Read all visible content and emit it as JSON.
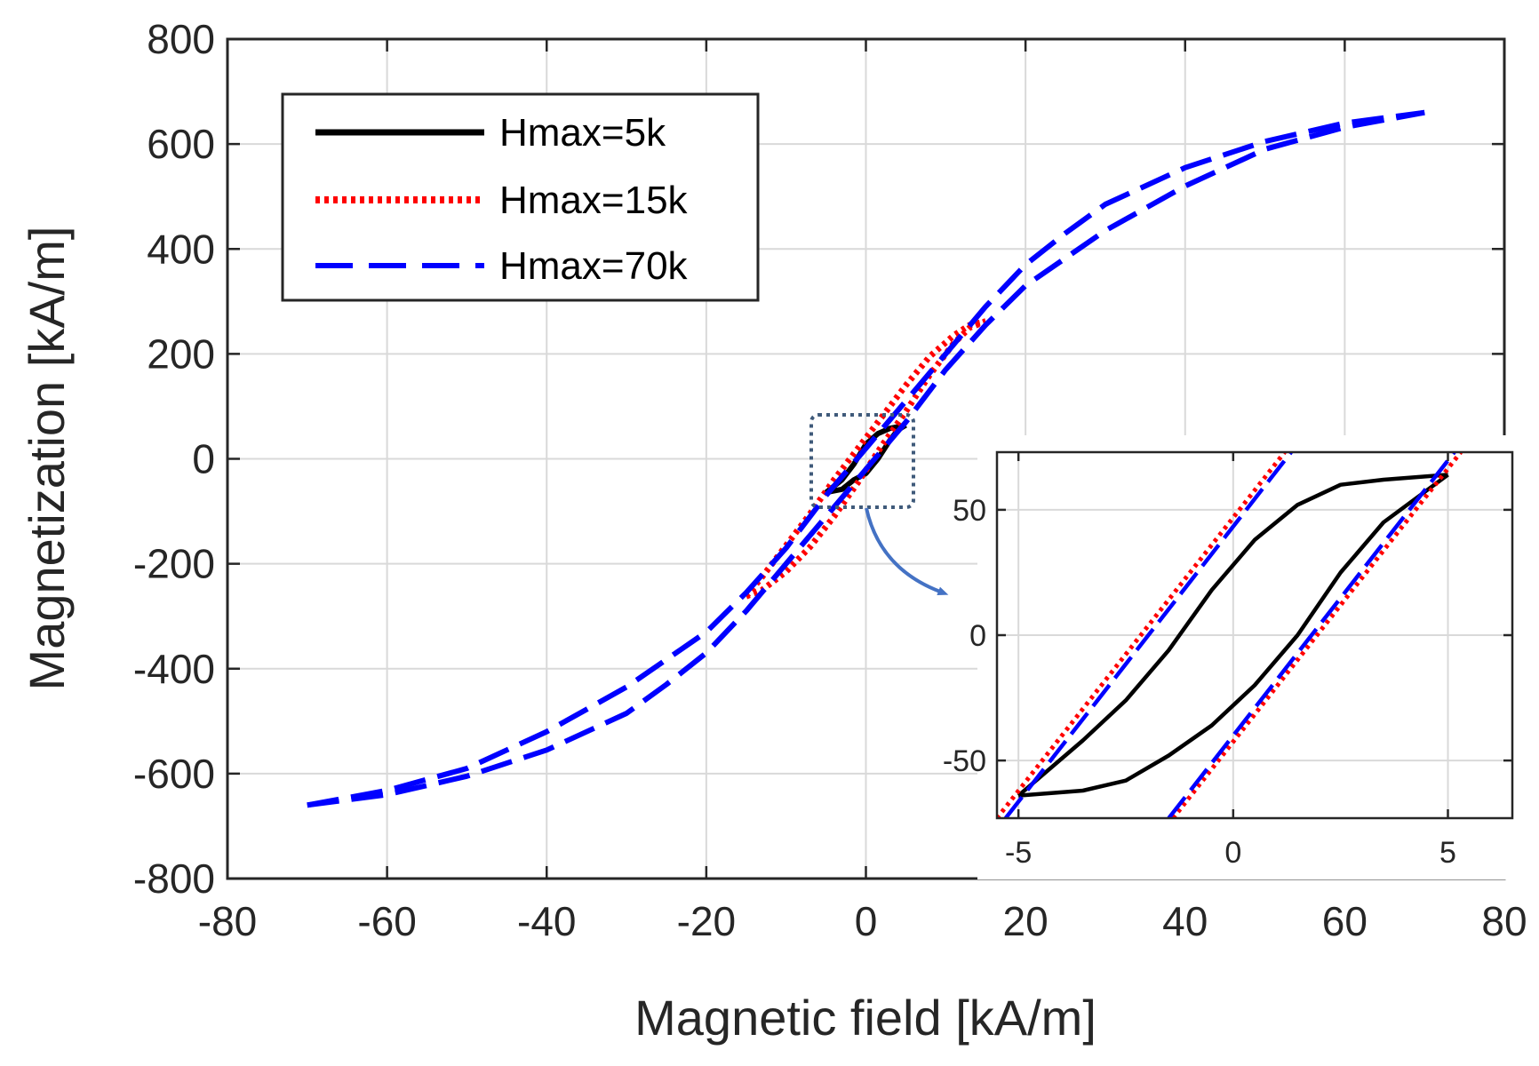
{
  "chart_data": [
    {
      "type": "line",
      "role": "main",
      "title": "",
      "xlabel": "Magnetic field [kA/m]",
      "ylabel": "Magnetization [kA/m]",
      "xlim": [
        -80,
        80
      ],
      "ylim": [
        -800,
        800
      ],
      "xticks": [
        -80,
        -60,
        -40,
        -20,
        0,
        20,
        40,
        60,
        80
      ],
      "yticks": [
        -800,
        -600,
        -400,
        -200,
        0,
        200,
        400,
        600,
        800
      ],
      "grid": true,
      "legend_position": "top-left",
      "series": [
        {
          "name": "Hmax=5k",
          "color": "#000000",
          "style": "solid",
          "upper": [
            [
              -5,
              -64
            ],
            [
              -3,
              -58
            ],
            [
              -1.5,
              -40
            ],
            [
              0,
              -28
            ],
            [
              1.5,
              0
            ],
            [
              3,
              35
            ],
            [
              4,
              55
            ],
            [
              5,
              64
            ]
          ],
          "lower": [
            [
              -5,
              -64
            ],
            [
              -3,
              -40
            ],
            [
              -1.5,
              -10
            ],
            [
              0,
              28
            ],
            [
              1.5,
              48
            ],
            [
              3,
              58
            ],
            [
              5,
              64
            ]
          ]
        },
        {
          "name": "Hmax=15k",
          "color": "#ff0000",
          "style": "dotted",
          "upper": [
            [
              -15,
              -262
            ],
            [
              -13,
              -250
            ],
            [
              -10,
              -215
            ],
            [
              -7,
              -168
            ],
            [
              -4,
              -110
            ],
            [
              -1,
              -45
            ],
            [
              2,
              25
            ],
            [
              5,
              90
            ],
            [
              8,
              160
            ],
            [
              11,
              220
            ],
            [
              13,
              250
            ],
            [
              15,
              262
            ]
          ],
          "lower": [
            [
              -15,
              -262
            ],
            [
              -13,
              -225
            ],
            [
              -10,
              -165
            ],
            [
              -7,
              -105
            ],
            [
              -4,
              -40
            ],
            [
              -1,
              20
            ],
            [
              2,
              80
            ],
            [
              5,
              140
            ],
            [
              8,
              195
            ],
            [
              11,
              235
            ],
            [
              13,
              255
            ],
            [
              15,
              262
            ]
          ]
        },
        {
          "name": "Hmax=70k",
          "color": "#0000ff",
          "style": "dashed",
          "upper": [
            [
              -70,
              -660
            ],
            [
              -60,
              -632
            ],
            [
              -50,
              -590
            ],
            [
              -40,
              -520
            ],
            [
              -30,
              -435
            ],
            [
              -20,
              -330
            ],
            [
              -15,
              -255
            ],
            [
              -10,
              -170
            ],
            [
              -5,
              -70
            ],
            [
              0,
              20
            ],
            [
              5,
              110
            ],
            [
              10,
              200
            ],
            [
              15,
              290
            ],
            [
              20,
              370
            ],
            [
              25,
              430
            ],
            [
              30,
              485
            ],
            [
              40,
              555
            ],
            [
              50,
              605
            ],
            [
              60,
              640
            ],
            [
              70,
              660
            ]
          ],
          "lower": [
            [
              -70,
              -660
            ],
            [
              -60,
              -640
            ],
            [
              -50,
              -605
            ],
            [
              -40,
              -555
            ],
            [
              -30,
              -485
            ],
            [
              -25,
              -430
            ],
            [
              -20,
              -370
            ],
            [
              -15,
              -290
            ],
            [
              -10,
              -200
            ],
            [
              -5,
              -110
            ],
            [
              0,
              -20
            ],
            [
              5,
              70
            ],
            [
              10,
              170
            ],
            [
              15,
              255
            ],
            [
              20,
              330
            ],
            [
              30,
              435
            ],
            [
              40,
              520
            ],
            [
              50,
              590
            ],
            [
              60,
              632
            ],
            [
              70,
              660
            ]
          ]
        }
      ]
    },
    {
      "type": "line",
      "role": "inset",
      "title": "",
      "xlim": [
        -5.5,
        6.5
      ],
      "ylim": [
        -73,
        73
      ],
      "xticks": [
        -5,
        0,
        5
      ],
      "yticks": [
        -50,
        0,
        50
      ],
      "grid": true,
      "series": [
        {
          "name": "Hmax=5k",
          "color": "#000000",
          "style": "solid",
          "upper": [
            [
              -5,
              -64
            ],
            [
              -3.5,
              -62
            ],
            [
              -2.5,
              -58
            ],
            [
              -1.5,
              -48
            ],
            [
              -0.5,
              -36
            ],
            [
              0.5,
              -20
            ],
            [
              1.5,
              0
            ],
            [
              2.5,
              25
            ],
            [
              3.5,
              45
            ],
            [
              5,
              64
            ]
          ],
          "lower": [
            [
              -5,
              -64
            ],
            [
              -3.5,
              -42
            ],
            [
              -2.5,
              -26
            ],
            [
              -1.5,
              -6
            ],
            [
              -0.5,
              18
            ],
            [
              0.5,
              38
            ],
            [
              1.5,
              52
            ],
            [
              2.5,
              60
            ],
            [
              3.5,
              62
            ],
            [
              5,
              64
            ]
          ]
        },
        {
          "name": "Hmax=15k",
          "color": "#ff0000",
          "style": "dotted",
          "upper": [
            [
              -5.5,
              -73
            ],
            [
              1.2,
              73
            ]
          ],
          "lower": [
            [
              -1.4,
              -73
            ],
            [
              5.3,
              73
            ]
          ]
        },
        {
          "name": "Hmax=70k",
          "color": "#0000ff",
          "style": "dashed",
          "upper": [
            [
              -5.3,
              -73
            ],
            [
              1.35,
              73
            ]
          ],
          "lower": [
            [
              -1.5,
              -73
            ],
            [
              5.15,
              73
            ]
          ]
        }
      ]
    }
  ],
  "colors": {
    "zoom_box": "#3f5a7a",
    "arrow": "#4472c4",
    "grid": "#d9d9d9",
    "axis": "#262626"
  },
  "icons": {
    "callout": "zoom-arrow-icon"
  }
}
